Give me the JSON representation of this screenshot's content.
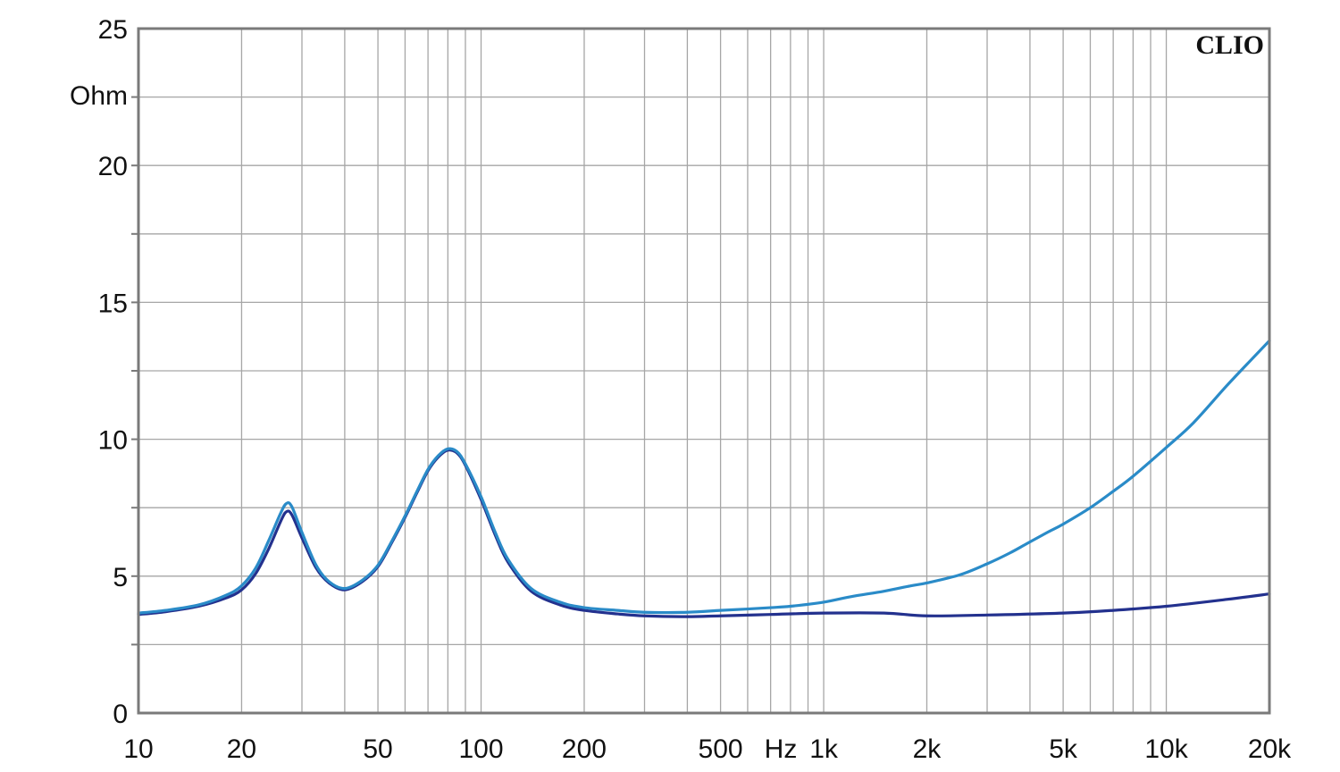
{
  "chart_data": {
    "type": "line",
    "brand": "CLIO",
    "ylabel": "Ohm",
    "xunit": "Hz",
    "xscale": "log",
    "xlim": [
      10,
      20000
    ],
    "ylim": [
      0,
      25
    ],
    "grid": true,
    "xticks": [
      {
        "value": 10,
        "label": "10"
      },
      {
        "value": 20,
        "label": "20"
      },
      {
        "value": 50,
        "label": "50"
      },
      {
        "value": 100,
        "label": "100"
      },
      {
        "value": 200,
        "label": "200"
      },
      {
        "value": 500,
        "label": "500"
      },
      {
        "value": 1000,
        "label": "1k"
      },
      {
        "value": 2000,
        "label": "2k"
      },
      {
        "value": 5000,
        "label": "5k"
      },
      {
        "value": 10000,
        "label": "10k"
      },
      {
        "value": 20000,
        "label": "20k"
      }
    ],
    "yticks": [
      {
        "value": 0,
        "label": "0"
      },
      {
        "value": 5,
        "label": "5"
      },
      {
        "value": 10,
        "label": "10"
      },
      {
        "value": 15,
        "label": "15"
      },
      {
        "value": 20,
        "label": "20"
      },
      {
        "value": 25,
        "label": "25"
      }
    ],
    "series": [
      {
        "color": "#2a8bc8",
        "points": [
          [
            10,
            3.65
          ],
          [
            12,
            3.75
          ],
          [
            15,
            3.95
          ],
          [
            18,
            4.3
          ],
          [
            20,
            4.65
          ],
          [
            22,
            5.3
          ],
          [
            24,
            6.3
          ],
          [
            26,
            7.3
          ],
          [
            27,
            7.65
          ],
          [
            28,
            7.55
          ],
          [
            30,
            6.6
          ],
          [
            33,
            5.4
          ],
          [
            36,
            4.8
          ],
          [
            40,
            4.55
          ],
          [
            45,
            4.85
          ],
          [
            50,
            5.4
          ],
          [
            55,
            6.3
          ],
          [
            60,
            7.2
          ],
          [
            65,
            8.1
          ],
          [
            70,
            8.9
          ],
          [
            75,
            9.4
          ],
          [
            80,
            9.65
          ],
          [
            85,
            9.55
          ],
          [
            90,
            9.1
          ],
          [
            100,
            7.9
          ],
          [
            110,
            6.6
          ],
          [
            120,
            5.6
          ],
          [
            140,
            4.55
          ],
          [
            170,
            4.05
          ],
          [
            200,
            3.85
          ],
          [
            250,
            3.75
          ],
          [
            300,
            3.68
          ],
          [
            400,
            3.68
          ],
          [
            500,
            3.75
          ],
          [
            600,
            3.8
          ],
          [
            700,
            3.85
          ],
          [
            800,
            3.9
          ],
          [
            1000,
            4.05
          ],
          [
            1200,
            4.25
          ],
          [
            1500,
            4.45
          ],
          [
            1800,
            4.65
          ],
          [
            2000,
            4.75
          ],
          [
            2500,
            5.05
          ],
          [
            3000,
            5.45
          ],
          [
            3500,
            5.85
          ],
          [
            4000,
            6.25
          ],
          [
            4500,
            6.6
          ],
          [
            5000,
            6.9
          ],
          [
            6000,
            7.5
          ],
          [
            7000,
            8.1
          ],
          [
            8000,
            8.65
          ],
          [
            10000,
            9.7
          ],
          [
            12000,
            10.6
          ],
          [
            15000,
            11.95
          ],
          [
            18000,
            13.0
          ],
          [
            20000,
            13.6
          ]
        ]
      },
      {
        "color": "#23318e",
        "points": [
          [
            10,
            3.6
          ],
          [
            12,
            3.7
          ],
          [
            15,
            3.9
          ],
          [
            18,
            4.2
          ],
          [
            20,
            4.5
          ],
          [
            22,
            5.1
          ],
          [
            24,
            6.0
          ],
          [
            26,
            7.0
          ],
          [
            27,
            7.35
          ],
          [
            28,
            7.25
          ],
          [
            30,
            6.4
          ],
          [
            33,
            5.3
          ],
          [
            36,
            4.75
          ],
          [
            40,
            4.5
          ],
          [
            45,
            4.8
          ],
          [
            50,
            5.35
          ],
          [
            55,
            6.25
          ],
          [
            60,
            7.15
          ],
          [
            65,
            8.05
          ],
          [
            70,
            8.85
          ],
          [
            75,
            9.35
          ],
          [
            80,
            9.6
          ],
          [
            85,
            9.5
          ],
          [
            90,
            9.05
          ],
          [
            100,
            7.8
          ],
          [
            110,
            6.5
          ],
          [
            120,
            5.5
          ],
          [
            140,
            4.45
          ],
          [
            170,
            3.95
          ],
          [
            200,
            3.75
          ],
          [
            250,
            3.62
          ],
          [
            300,
            3.55
          ],
          [
            400,
            3.52
          ],
          [
            500,
            3.55
          ],
          [
            700,
            3.6
          ],
          [
            1000,
            3.65
          ],
          [
            1500,
            3.65
          ],
          [
            2000,
            3.55
          ],
          [
            3000,
            3.58
          ],
          [
            5000,
            3.65
          ],
          [
            7000,
            3.75
          ],
          [
            10000,
            3.9
          ],
          [
            15000,
            4.15
          ],
          [
            20000,
            4.35
          ]
        ]
      }
    ]
  }
}
